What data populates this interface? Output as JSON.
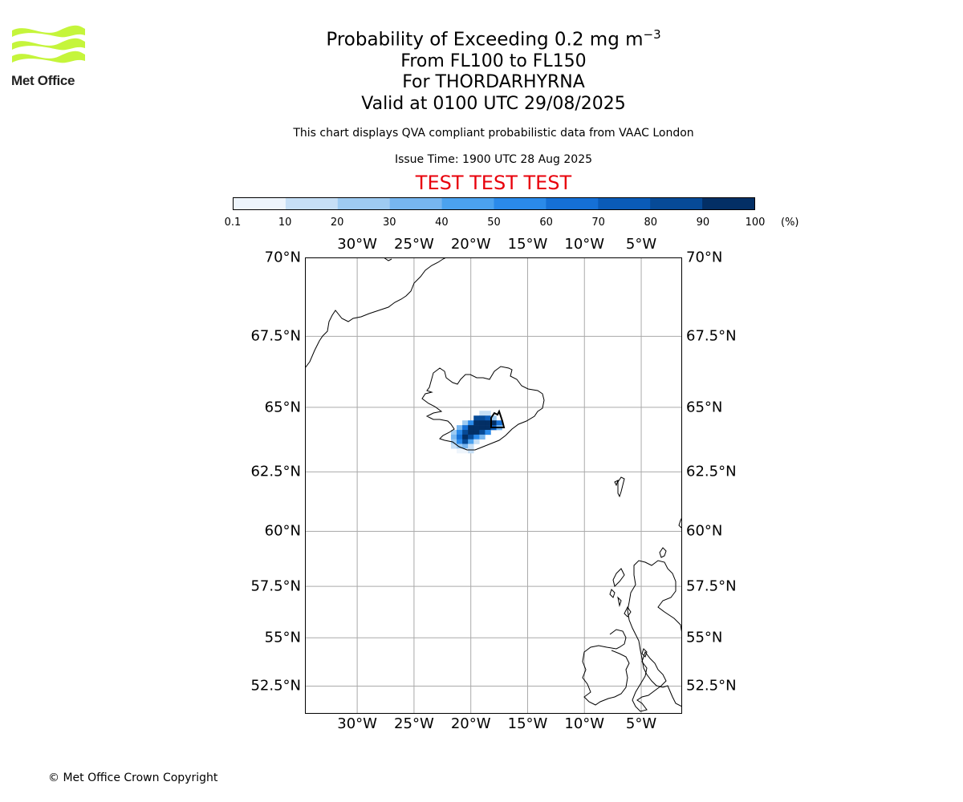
{
  "logo": {
    "text": "Met Office"
  },
  "header": {
    "title_main": "Probability of Exceeding 0.2 mg m",
    "title_exp": "−3",
    "line2": "From FL100 to FL150",
    "line3": "For THORDARHYRNA",
    "line4": "Valid at 0100 UTC 29/08/2025",
    "info": "This chart displays QVA compliant probabilistic data from VAAC London",
    "issue_time": "Issue Time: 1900 UTC 28 Aug 2025",
    "test_banner": "TEST TEST TEST"
  },
  "colorbar": {
    "ticks": [
      "0.1",
      "10",
      "20",
      "30",
      "40",
      "50",
      "60",
      "70",
      "80",
      "90",
      "100"
    ],
    "unit": "(%)",
    "colors": [
      "#eef5fc",
      "#c6dff6",
      "#9ecbf2",
      "#77b6f0",
      "#4ba2ef",
      "#2a8aea",
      "#1570d6",
      "#0a5bb8",
      "#064a97",
      "#032f65"
    ]
  },
  "map": {
    "lon_labels": [
      "30°W",
      "25°W",
      "20°W",
      "15°W",
      "10°W",
      "5°W"
    ],
    "lat_labels": [
      "70°N",
      "67.5°N",
      "65°N",
      "62.5°N",
      "60°N",
      "57.5°N",
      "55°N",
      "52.5°N"
    ],
    "grid_color": "#aaaaaa",
    "extent": {
      "lon": [
        -34.6,
        -1.4
      ],
      "lat": [
        51.0,
        70.0
      ]
    }
  },
  "chart_data": {
    "type": "heatmap",
    "title": "Probability of Exceeding 0.2 mg m−3",
    "units": "%",
    "bins": [
      0.1,
      10,
      20,
      30,
      40,
      50,
      60,
      70,
      80,
      90,
      100
    ],
    "cells": [
      {
        "lon": -19.0,
        "lat": 64.78,
        "p": 15
      },
      {
        "lon": -18.5,
        "lat": 64.78,
        "p": 15
      },
      {
        "lon": -19.5,
        "lat": 64.6,
        "p": 85
      },
      {
        "lon": -19.0,
        "lat": 64.6,
        "p": 85
      },
      {
        "lon": -18.5,
        "lat": 64.6,
        "p": 75
      },
      {
        "lon": -18.0,
        "lat": 64.6,
        "p": 20
      },
      {
        "lon": -20.5,
        "lat": 64.42,
        "p": 25
      },
      {
        "lon": -20.0,
        "lat": 64.42,
        "p": 55
      },
      {
        "lon": -19.5,
        "lat": 64.42,
        "p": 95
      },
      {
        "lon": -19.0,
        "lat": 64.42,
        "p": 95
      },
      {
        "lon": -18.5,
        "lat": 64.42,
        "p": 95
      },
      {
        "lon": -18.0,
        "lat": 64.42,
        "p": 95
      },
      {
        "lon": -17.5,
        "lat": 64.42,
        "p": 65
      },
      {
        "lon": -21.0,
        "lat": 64.24,
        "p": 35
      },
      {
        "lon": -20.5,
        "lat": 64.24,
        "p": 65
      },
      {
        "lon": -20.0,
        "lat": 64.24,
        "p": 95
      },
      {
        "lon": -19.5,
        "lat": 64.24,
        "p": 95
      },
      {
        "lon": -19.0,
        "lat": 64.24,
        "p": 95
      },
      {
        "lon": -18.5,
        "lat": 64.24,
        "p": 95
      },
      {
        "lon": -18.0,
        "lat": 64.24,
        "p": 75
      },
      {
        "lon": -17.5,
        "lat": 64.24,
        "p": 35
      },
      {
        "lon": -21.5,
        "lat": 64.06,
        "p": 25
      },
      {
        "lon": -21.0,
        "lat": 64.06,
        "p": 55
      },
      {
        "lon": -20.5,
        "lat": 64.06,
        "p": 85
      },
      {
        "lon": -20.0,
        "lat": 64.06,
        "p": 95
      },
      {
        "lon": -19.5,
        "lat": 64.06,
        "p": 95
      },
      {
        "lon": -19.0,
        "lat": 64.06,
        "p": 85
      },
      {
        "lon": -18.5,
        "lat": 64.06,
        "p": 55
      },
      {
        "lon": -21.5,
        "lat": 63.88,
        "p": 35
      },
      {
        "lon": -21.0,
        "lat": 63.88,
        "p": 65
      },
      {
        "lon": -20.5,
        "lat": 63.88,
        "p": 95
      },
      {
        "lon": -20.0,
        "lat": 63.88,
        "p": 85
      },
      {
        "lon": -19.5,
        "lat": 63.88,
        "p": 55
      },
      {
        "lon": -19.0,
        "lat": 63.88,
        "p": 35
      },
      {
        "lon": -21.5,
        "lat": 63.7,
        "p": 25
      },
      {
        "lon": -21.0,
        "lat": 63.7,
        "p": 55
      },
      {
        "lon": -20.5,
        "lat": 63.7,
        "p": 85
      },
      {
        "lon": -20.0,
        "lat": 63.7,
        "p": 45
      },
      {
        "lon": -19.5,
        "lat": 63.7,
        "p": 15
      },
      {
        "lon": -21.5,
        "lat": 63.52,
        "p": 15
      },
      {
        "lon": -21.0,
        "lat": 63.52,
        "p": 25
      },
      {
        "lon": -20.5,
        "lat": 63.52,
        "p": 35
      },
      {
        "lon": -20.0,
        "lat": 63.52,
        "p": 15
      },
      {
        "lon": -21.0,
        "lat": 63.34,
        "p": 8
      },
      {
        "lon": -20.5,
        "lat": 63.34,
        "p": 8
      },
      {
        "lon": -20.0,
        "lat": 63.34,
        "p": 15
      }
    ]
  },
  "footer": {
    "copyright": "© Met Office Crown Copyright"
  }
}
